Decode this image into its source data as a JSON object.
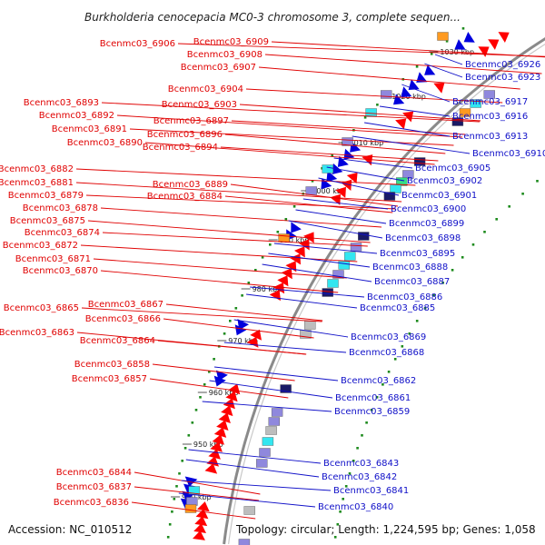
{
  "title": "Burkholderia cenocepacia MC0-3 chromosome 3, complete sequen...",
  "footer": {
    "accession": "Accession: NC_010512",
    "summary": "Topology: circular; Length: 1,224,595 bp; Genes: 1,058"
  },
  "colors": {
    "forward_gene": "#ff0000",
    "reverse_gene": "#0000dd",
    "cds_cyan": "#33e6f0",
    "cds_violet": "#8f88dd",
    "cds_navy": "#1a1a66",
    "cds_orange": "#ff9a20",
    "cds_gray": "#bdbdbd",
    "cds_green": "#33dd88",
    "tick": "#1e8b1e",
    "backbone": "#8a8a8a"
  },
  "kbp_ticks": [
    "1030 kbp",
    "1020 kbp",
    "1010 kbp",
    "1000 kbp",
    "990 kbp",
    "980 kbp",
    "970 kbp",
    "960 kbp",
    "950 kbp",
    "940 kbp"
  ],
  "left_labels": [
    "Bcenmc03_6906",
    "Bcenmc03_6909",
    "Bcenmc03_6908",
    "Bcenmc03_6907",
    "Bcenmc03_6904",
    "Bcenmc03_6903",
    "Bcenmc03_6893",
    "Bcenmc03_6892",
    "Bcenmc03_6897",
    "Bcenmc03_6891",
    "Bcenmc03_6896",
    "Bcenmc03_6890",
    "Bcenmc03_6894",
    "Bcenmc03_6882",
    "Bcenmc03_6881",
    "Bcenmc03_6889",
    "Bcenmc03_6879",
    "Bcenmc03_6884",
    "Bcenmc03_6878",
    "Bcenmc03_6875",
    "Bcenmc03_6874",
    "Bcenmc03_6872",
    "Bcenmc03_6871",
    "Bcenmc03_6870",
    "Bcenmc03_6865",
    "Bcenmc03_6867",
    "Bcenmc03_6866",
    "Bcenmc03_6863",
    "Bcenmc03_6864",
    "Bcenmc03_6858",
    "Bcenmc03_6857",
    "Bcenmc03_6844",
    "Bcenmc03_6837",
    "Bcenmc03_6836"
  ],
  "right_labels": [
    "Bcenmc03_6926",
    "Bcenmc03_6923",
    "Bcenmc03_6917",
    "Bcenmc03_6916",
    "Bcenmc03_6913",
    "Bcenmc03_6910",
    "Bcenmc03_6905",
    "Bcenmc03_6902",
    "Bcenmc03_6901",
    "Bcenmc03_6900",
    "Bcenmc03_6899",
    "Bcenmc03_6898",
    "Bcenmc03_6895",
    "Bcenmc03_6888",
    "Bcenmc03_6887",
    "Bcenmc03_6886",
    "Bcenmc03_6885",
    "Bcenmc03_6869",
    "Bcenmc03_6868",
    "Bcenmc03_6862",
    "Bcenmc03_6861",
    "Bcenmc03_6859",
    "Bcenmc03_6843",
    "Bcenmc03_6842",
    "Bcenmc03_6841",
    "Bcenmc03_6840"
  ]
}
